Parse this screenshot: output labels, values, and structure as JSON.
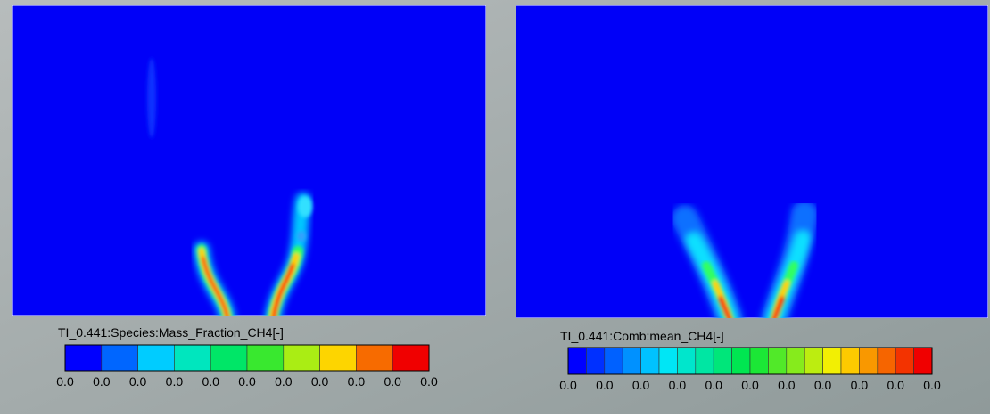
{
  "panels": [
    {
      "title": "TI_0.441:Species:Mass_Fraction_CH4[-]",
      "colorbar_labels": [
        "0.0",
        "0.0",
        "0.0",
        "0.0",
        "0.0",
        "0.0",
        "0.0",
        "0.0",
        "0.0",
        "0.0",
        "0.0"
      ]
    },
    {
      "title": "TI_0.441:Comb:mean_CH4[-]",
      "colorbar_labels": [
        "0.0",
        "0.0",
        "0.0",
        "0.0",
        "0.0",
        "0.0",
        "0.0",
        "0.0",
        "0.0",
        "0.0",
        "0.0"
      ]
    }
  ]
}
